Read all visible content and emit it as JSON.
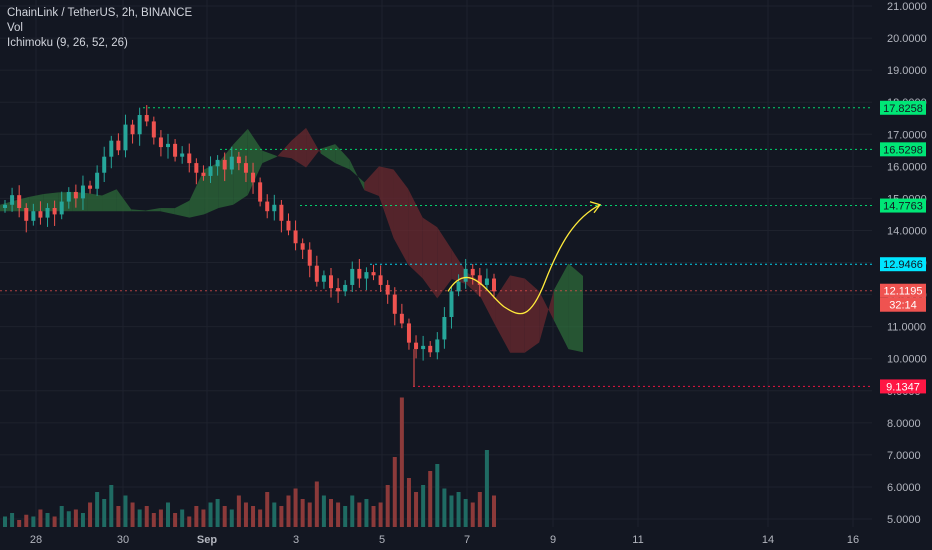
{
  "legend": {
    "symbol_line": "ChainLink / TetherUS, 2h, BINANCE",
    "vol_label": "Vol",
    "ichimoku_label": "Ichimoku (9, 26, 52, 26)"
  },
  "colors": {
    "background": "#131722",
    "bull": "#26a69a",
    "bear": "#ef5350",
    "kumo_bull": "#2e6b3a",
    "kumo_bear": "#6b2a2f",
    "level_green": "#00e676",
    "level_cyan": "#00e5ff",
    "level_red": "#ff1744",
    "projection": "#ffeb3b"
  },
  "chart_data": {
    "type": "candlestick",
    "symbol": "ChainLink / TetherUS",
    "timeframe": "2h",
    "exchange": "BINANCE",
    "y_axis": {
      "ylim": [
        5.0,
        21.0
      ],
      "ticks": [
        "21.0000",
        "20.0000",
        "19.0000",
        "18.0000",
        "17.0000",
        "16.0000",
        "15.0000",
        "14.0000",
        "13.0000",
        "12.0000",
        "11.0000",
        "10.0000",
        "9.0000",
        "8.0000",
        "7.0000",
        "6.0000",
        "5.0000"
      ]
    },
    "x_axis": {
      "ticks": [
        "28",
        "30",
        "Sep",
        "3",
        "5",
        "7",
        "9",
        "11",
        "14",
        "16"
      ]
    },
    "price_levels": [
      {
        "label": "17.8258",
        "value": 17.8258,
        "style": "green"
      },
      {
        "label": "16.5298",
        "value": 16.5298,
        "style": "green"
      },
      {
        "label": "14.7763",
        "value": 14.7763,
        "style": "green"
      },
      {
        "label": "12.9466",
        "value": 12.9466,
        "style": "cyan"
      },
      {
        "label": "12.1195",
        "value": 12.1195,
        "style": "current"
      },
      {
        "label": "9.1347",
        "value": 9.1347,
        "style": "red"
      }
    ],
    "countdown": "32:14",
    "price_path": [
      14.8,
      15.1,
      14.7,
      14.3,
      14.6,
      14.4,
      14.7,
      14.5,
      14.9,
      15.2,
      15.0,
      15.4,
      15.3,
      15.8,
      16.3,
      16.8,
      16.5,
      17.3,
      17.0,
      17.6,
      17.4,
      16.9,
      16.6,
      16.7,
      16.3,
      16.4,
      16.1,
      15.8,
      15.7,
      16.0,
      16.2,
      15.9,
      16.3,
      16.1,
      15.8,
      15.5,
      14.9,
      14.6,
      14.8,
      14.3,
      14.0,
      13.6,
      13.4,
      12.9,
      12.4,
      12.6,
      12.2,
      12.1,
      12.3,
      12.8,
      12.5,
      12.7,
      12.6,
      12.3,
      12.0,
      11.4,
      11.1,
      10.5,
      10.3,
      10.4,
      10.2,
      10.6,
      11.3,
      12.1,
      12.4,
      12.8,
      12.6,
      12.3,
      12.5,
      12.1
    ],
    "volume_path": [
      0.3,
      0.4,
      0.2,
      0.35,
      0.3,
      0.5,
      0.4,
      0.3,
      0.6,
      0.45,
      0.5,
      0.4,
      0.7,
      1.0,
      0.8,
      1.2,
      0.6,
      0.9,
      0.7,
      0.5,
      0.6,
      0.4,
      0.5,
      0.7,
      0.4,
      0.5,
      0.3,
      0.6,
      0.5,
      0.7,
      0.8,
      0.6,
      0.5,
      0.9,
      0.7,
      0.6,
      0.5,
      1.0,
      0.7,
      0.6,
      0.9,
      1.1,
      0.8,
      0.7,
      1.3,
      0.9,
      0.8,
      0.7,
      0.6,
      0.9,
      0.7,
      0.8,
      0.6,
      0.7,
      1.2,
      2.0,
      3.7,
      1.4,
      1.0,
      1.2,
      1.6,
      1.8,
      1.1,
      0.9,
      1.0,
      0.8,
      0.7,
      1.0,
      2.2,
      0.9
    ],
    "projection": "curved arrow from ~12.1 down to ~11.4 then up to 14.8"
  }
}
